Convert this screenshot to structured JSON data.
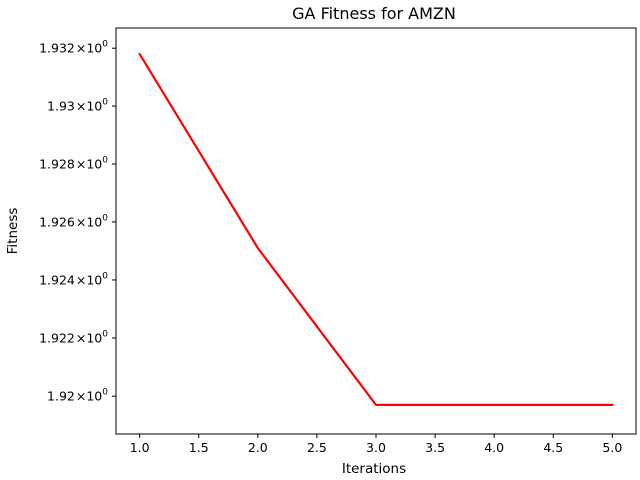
{
  "chart_data": {
    "type": "line",
    "title": "GA Fitness for AMZN",
    "xlabel": "Iterations",
    "ylabel": "Fitness",
    "yscale": "log",
    "grid": false,
    "xlim": [
      0.8,
      5.2
    ],
    "ylim": [
      1.9187,
      1.9327
    ],
    "xticks": [
      {
        "value": 1.0,
        "label": "1.0"
      },
      {
        "value": 1.5,
        "label": "1.5"
      },
      {
        "value": 2.0,
        "label": "2.0"
      },
      {
        "value": 2.5,
        "label": "2.5"
      },
      {
        "value": 3.0,
        "label": "3.0"
      },
      {
        "value": 3.5,
        "label": "3.5"
      },
      {
        "value": 4.0,
        "label": "4.0"
      },
      {
        "value": 4.5,
        "label": "4.5"
      },
      {
        "value": 5.0,
        "label": "5.0"
      }
    ],
    "yticks": [
      {
        "value": 1.932,
        "mantissa": "1.932",
        "base": "10",
        "exponent": "0"
      },
      {
        "value": 1.93,
        "mantissa": "1.93",
        "base": "10",
        "exponent": "0"
      },
      {
        "value": 1.928,
        "mantissa": "1.928",
        "base": "10",
        "exponent": "0"
      },
      {
        "value": 1.926,
        "mantissa": "1.926",
        "base": "10",
        "exponent": "0"
      },
      {
        "value": 1.924,
        "mantissa": "1.924",
        "base": "10",
        "exponent": "0"
      },
      {
        "value": 1.922,
        "mantissa": "1.922",
        "base": "10",
        "exponent": "0"
      },
      {
        "value": 1.92,
        "mantissa": "1.92",
        "base": "10",
        "exponent": "0"
      }
    ],
    "times_sign": "×",
    "series": [
      {
        "color": "#ff0000",
        "x": [
          1,
          2,
          3,
          4,
          5
        ],
        "y": [
          1.9318,
          1.9251,
          1.9197,
          1.9197,
          1.9197
        ]
      }
    ]
  }
}
